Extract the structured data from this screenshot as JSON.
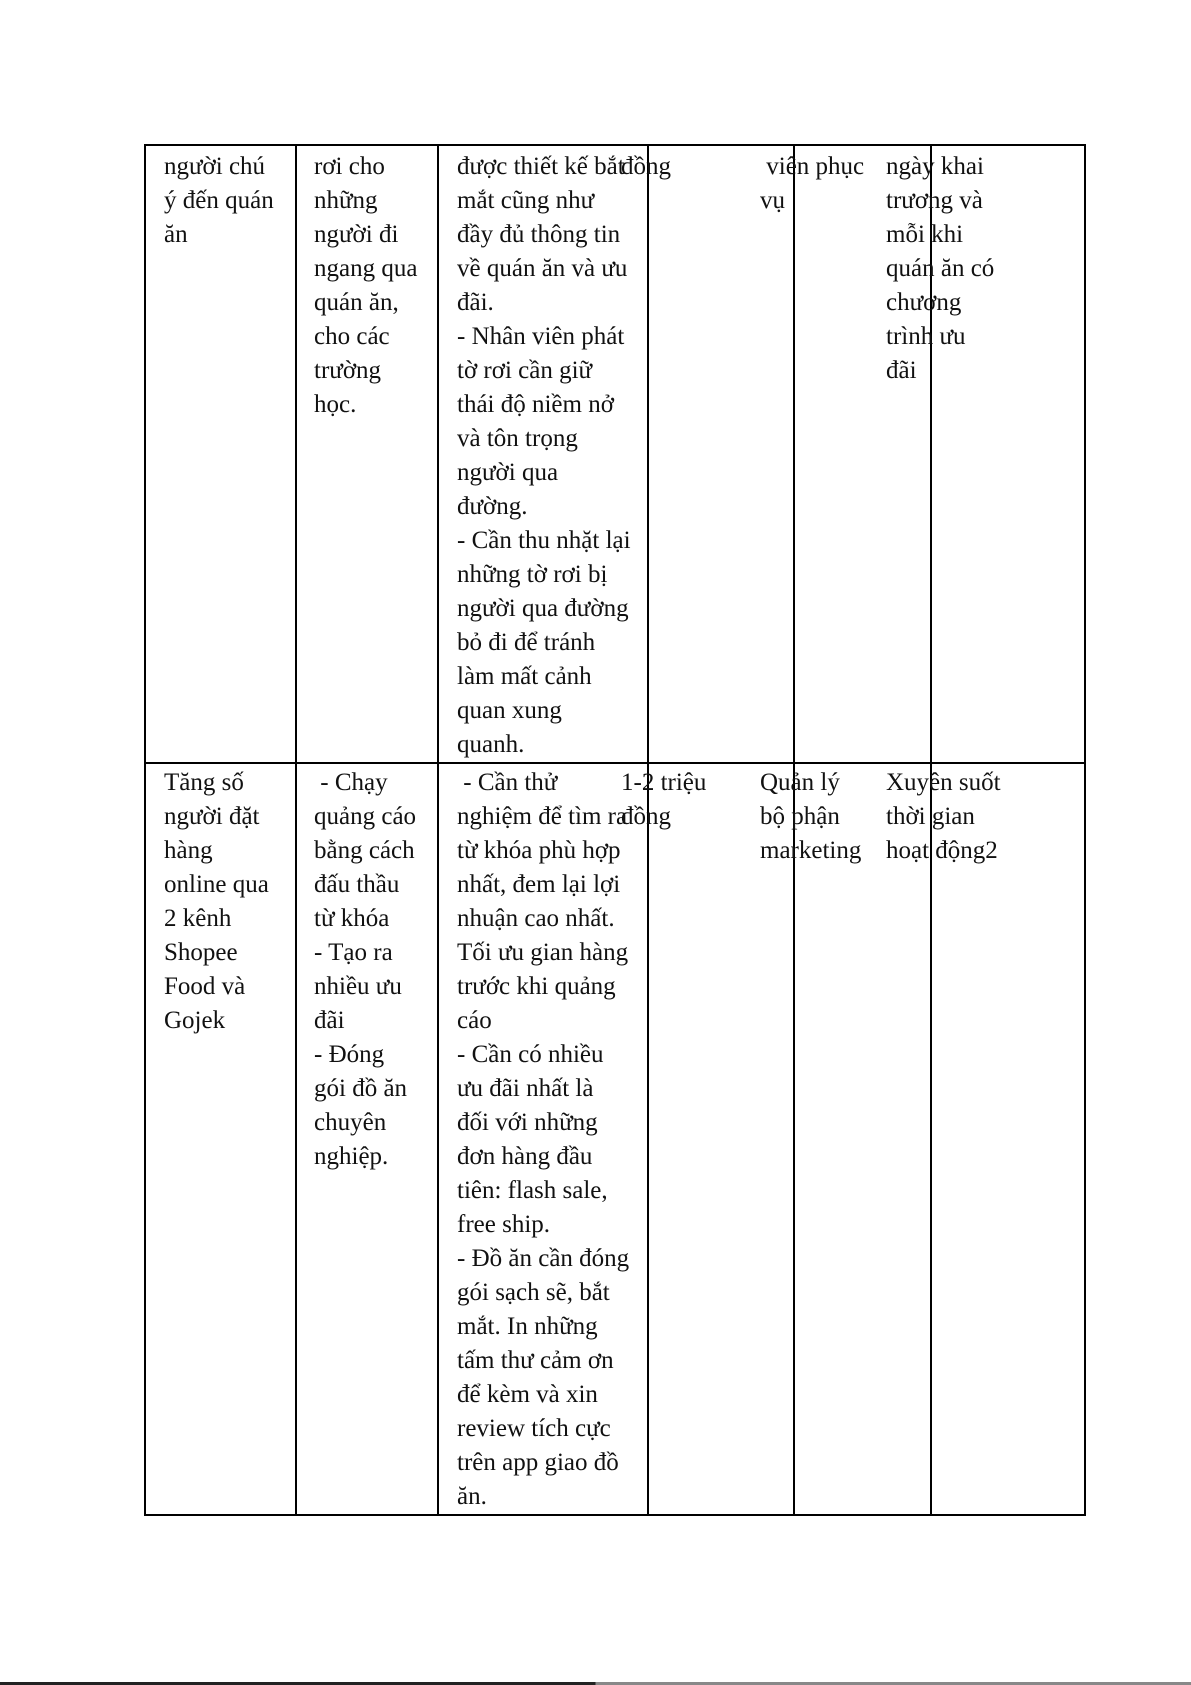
{
  "table": {
    "rows": [
      {
        "cells": [
          [
            "người chú",
            "ý đến quán",
            "ăn"
          ],
          [
            "rơi cho",
            "những",
            "người đi",
            "ngang qua",
            "quán ăn,",
            "cho các",
            "trường",
            "học."
          ],
          [
            "được thiết kế bắt",
            "mắt cũng như",
            "đầy đủ thông tin",
            "về quán ăn và ưu",
            "đãi.",
            "- Nhân viên phát",
            "tờ rơi cần giữ",
            "thái độ niềm nở",
            "và tôn trọng",
            "người qua",
            "đường.",
            "- Cần thu nhặt lại",
            "những tờ rơi bị",
            "người qua đường",
            "bỏ đi để tránh",
            "làm mất cảnh",
            "quan xung",
            "quanh."
          ],
          [
            "đồng"
          ],
          [
            " viên phục",
            "vụ"
          ],
          [
            "ngày khai",
            "trương và",
            "mỗi khi",
            "quán ăn có",
            "chương",
            "trình ưu",
            "đãi"
          ]
        ]
      },
      {
        "cells": [
          [
            "Tăng số",
            "người đặt",
            "hàng",
            "online qua",
            "2 kênh",
            "Shopee",
            "Food và",
            "Gojek"
          ],
          [
            " - Chạy",
            "quảng cáo",
            "bằng cách",
            "đấu thầu",
            "từ khóa",
            "- Tạo ra",
            "nhiều ưu",
            "đãi",
            "- Đóng",
            "gói đồ ăn",
            "chuyên",
            "nghiệp."
          ],
          [
            " - Cần thử",
            "nghiệm để tìm ra",
            "từ khóa phù hợp",
            "nhất, đem lại lợi",
            "nhuận cao nhất.",
            "Tối ưu gian hàng",
            "trước khi quảng",
            "cáo",
            "- Cần có nhiều",
            "ưu đãi nhất là",
            "đối với những",
            "đơn hàng đầu",
            "tiên: flash sale,",
            "free ship.",
            "- Đồ ăn cần đóng",
            "gói sạch sẽ, bắt",
            "mắt. In những",
            "tấm thư cảm ơn",
            "để kèm và xin",
            "review tích cực",
            "trên app giao đồ",
            "ăn."
          ],
          [
            "1-2 triệu",
            "đồng"
          ],
          [
            "Quản lý",
            "bộ phận",
            "marketing"
          ],
          [
            "Xuyên suốt",
            "thời gian",
            "hoạt động2"
          ]
        ]
      }
    ]
  }
}
